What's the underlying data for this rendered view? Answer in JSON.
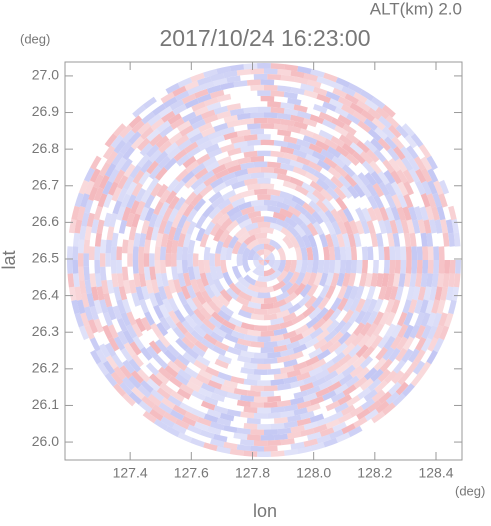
{
  "chart_data": {
    "type": "radar-ppi",
    "title": "2017/10/24 16:23:00",
    "subtitle": "ALT(km) 2.0",
    "x_label": "lon",
    "y_label": "lat",
    "x_unit": "(deg)",
    "y_unit": "(deg)",
    "xlim": [
      127.187,
      128.485
    ],
    "ylim": [
      25.951,
      27.038
    ],
    "xticks": [
      127.4,
      127.6,
      127.8,
      {
        "value": 128,
        "label": "128.0"
      },
      128.2,
      128.4
    ],
    "yticks": [
      {
        "value": 26,
        "label": "26.0"
      },
      26.1,
      26.2,
      26.3,
      26.4,
      26.5,
      26.6,
      26.7,
      26.8,
      26.9,
      {
        "value": 27,
        "label": "27.0"
      }
    ],
    "colors": [
      "#f3b3b8",
      "#bfc3f3"
    ]
  }
}
